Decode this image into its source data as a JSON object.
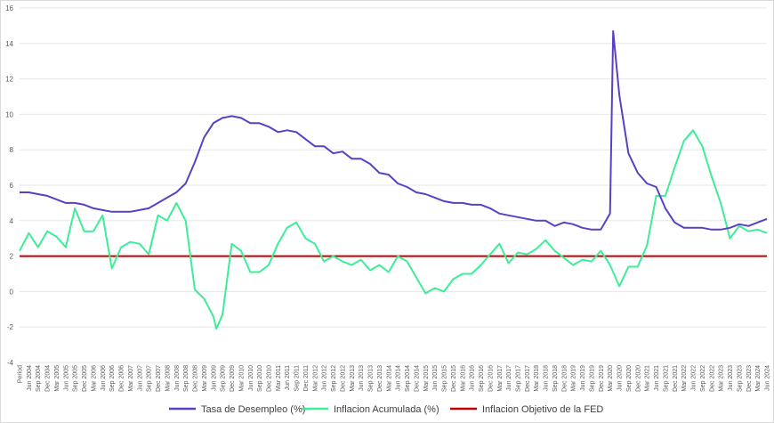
{
  "chart_data": {
    "type": "line",
    "title": "",
    "xlabel": "",
    "ylabel": "",
    "ylim": [
      -4,
      16
    ],
    "ytick_step": 2,
    "grid": true,
    "legend_position": "bottom",
    "x_labels": [
      "Period",
      "Jun 2004",
      "Sep 2004",
      "Dec 2004",
      "Mar 2005",
      "Jun 2005",
      "Sep 2005",
      "Dec 2005",
      "Mar 2006",
      "Jun 2006",
      "Sep 2006",
      "Dec 2006",
      "Mar 2007",
      "Jun 2007",
      "Sep 2007",
      "Dec 2007",
      "Mar 2008",
      "Jun 2008",
      "Sep 2008",
      "Dec 2008",
      "Mar 2009",
      "Jun 2009",
      "Sep 2009",
      "Dec 2009",
      "Mar 2010",
      "Jun 2010",
      "Sep 2010",
      "Dec 2010",
      "Mar 2011",
      "Jun 2011",
      "Sep 2011",
      "Dec 2011",
      "Mar 2012",
      "Jun 2012",
      "Sep 2012",
      "Dec 2012",
      "Mar 2013",
      "Jun 2013",
      "Sep 2013",
      "Dec 2013",
      "Mar 2014",
      "Jun 2014",
      "Sep 2014",
      "Dec 2014",
      "Mar 2015",
      "Jun 2015",
      "Sep 2015",
      "Dec 2015",
      "Mar 2016",
      "Jun 2016",
      "Sep 2016",
      "Dec 2016",
      "Mar 2017",
      "Jun 2017",
      "Sep 2017",
      "Dec 2017",
      "Mar 2018",
      "Jun 2018",
      "Sep 2018",
      "Dec 2018",
      "Mar 2019",
      "Jun 2019",
      "Sep 2019",
      "Dec 2019",
      "Mar 2020",
      "Jun 2020",
      "Sep 2020",
      "Dec 2020",
      "Mar 2021",
      "Jun 2021",
      "Sep 2021",
      "Dec 2021",
      "Mar 2022",
      "Jun 2022",
      "Sep 2022",
      "Dec 2022",
      "Mar 2023",
      "Jun 2023",
      "Sep 2023",
      "Dec 2023",
      "Mar 2024",
      "Jun 2024"
    ],
    "series": [
      {
        "name": "Tasa de Desempleo (%)",
        "color": "#5b3fc4",
        "values": [
          5.6,
          5.6,
          5.5,
          5.4,
          5.2,
          5.0,
          5.0,
          4.9,
          4.7,
          4.6,
          4.5,
          4.5,
          4.5,
          4.6,
          4.7,
          5.0,
          5.3,
          5.6,
          6.1,
          7.3,
          8.7,
          9.5,
          9.8,
          9.9,
          9.8,
          9.5,
          9.5,
          9.3,
          9.0,
          9.1,
          9.0,
          8.6,
          8.2,
          8.2,
          7.8,
          7.9,
          7.5,
          7.5,
          7.2,
          6.7,
          6.6,
          6.1,
          5.9,
          5.6,
          5.5,
          5.3,
          5.1,
          5.0,
          5.0,
          4.9,
          4.9,
          4.7,
          4.4,
          4.3,
          4.2,
          4.1,
          4.0,
          4.0,
          3.7,
          3.9,
          3.8,
          3.6,
          3.5,
          3.5,
          4.4,
          11.1,
          7.8,
          6.7,
          6.1,
          5.9,
          4.7,
          3.9,
          3.6,
          3.6,
          3.6,
          3.5,
          3.5,
          3.6,
          3.8,
          3.7,
          3.9,
          4.1
        ],
        "peak": {
          "x": "Apr 2020",
          "y": 14.7
        }
      },
      {
        "name": "Inflacion Acumulada (%)",
        "color": "#3ded97",
        "values": [
          2.3,
          3.3,
          2.5,
          3.4,
          3.1,
          2.5,
          4.7,
          3.4,
          3.4,
          4.3,
          1.3,
          2.5,
          2.8,
          2.7,
          2.1,
          4.3,
          4.0,
          5.0,
          4.0,
          0.1,
          -0.4,
          -1.4,
          -1.3,
          2.7,
          2.3,
          1.1,
          1.1,
          1.5,
          2.7,
          3.6,
          3.9,
          3.0,
          2.7,
          1.7,
          2.0,
          1.7,
          1.5,
          1.8,
          1.2,
          1.5,
          1.1,
          2.0,
          1.7,
          0.8,
          -0.1,
          0.2,
          0.0,
          0.7,
          1.0,
          1.0,
          1.5,
          2.1,
          2.7,
          1.6,
          2.2,
          2.1,
          2.4,
          2.9,
          2.3,
          1.9,
          1.5,
          1.8,
          1.7,
          2.3,
          1.5,
          0.3,
          1.4,
          1.4,
          2.6,
          5.4,
          5.4,
          7.0,
          8.5,
          9.1,
          8.2,
          6.5,
          5.0,
          3.0,
          3.7,
          3.4,
          3.5,
          3.3
        ],
        "trough": {
          "x": "Jul 2009",
          "y": -2.1
        }
      },
      {
        "name": "Inflacion Objetivo de la FED",
        "color": "#c00000",
        "values": [
          2,
          2,
          2,
          2,
          2,
          2,
          2,
          2,
          2,
          2,
          2,
          2,
          2,
          2,
          2,
          2,
          2,
          2,
          2,
          2,
          2,
          2,
          2,
          2,
          2,
          2,
          2,
          2,
          2,
          2,
          2,
          2,
          2,
          2,
          2,
          2,
          2,
          2,
          2,
          2,
          2,
          2,
          2,
          2,
          2,
          2,
          2,
          2,
          2,
          2,
          2,
          2,
          2,
          2,
          2,
          2,
          2,
          2,
          2,
          2,
          2,
          2,
          2,
          2,
          2,
          2,
          2,
          2,
          2,
          2,
          2,
          2,
          2,
          2,
          2,
          2,
          2,
          2,
          2,
          2,
          2,
          2
        ]
      }
    ]
  }
}
